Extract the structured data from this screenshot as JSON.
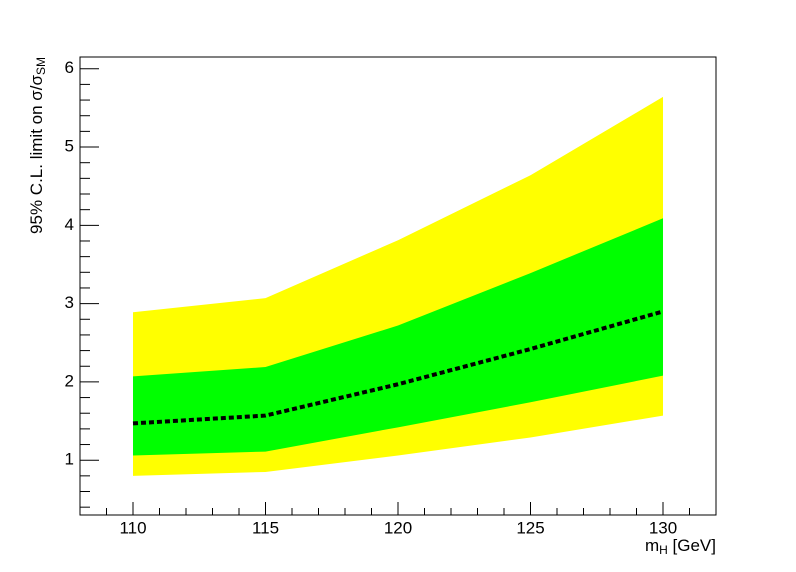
{
  "chart_data": {
    "type": "band",
    "x_label": {
      "text": "m",
      "sub": "H",
      "suffix": " [GeV]"
    },
    "y_label": {
      "text": "95% C.L. limit on σ/σ",
      "sub": "SM"
    },
    "x": [
      110,
      115,
      120,
      125,
      130
    ],
    "bands": [
      {
        "color": "#ffff00",
        "lower": [
          0.8,
          0.85,
          1.06,
          1.29,
          1.57
        ],
        "upper": [
          2.89,
          3.07,
          3.81,
          4.64,
          5.64
        ]
      },
      {
        "color": "#00ff00",
        "lower": [
          1.06,
          1.11,
          1.42,
          1.74,
          2.08
        ],
        "upper": [
          2.07,
          2.19,
          2.72,
          3.39,
          4.09
        ]
      }
    ],
    "series": [
      {
        "color": "#000000",
        "dashed": true,
        "values": [
          1.47,
          1.57,
          1.97,
          2.42,
          2.9
        ]
      }
    ],
    "xlim": [
      108,
      132
    ],
    "ylim": [
      0.3,
      6.15
    ],
    "xticks": [
      110,
      115,
      120,
      125,
      130
    ],
    "yticks": [
      1,
      2,
      3,
      4,
      5,
      6
    ],
    "xminorticks": [
      108,
      109,
      111,
      112,
      113,
      114,
      116,
      117,
      118,
      119,
      121,
      122,
      123,
      124,
      126,
      127,
      128,
      129,
      131,
      132
    ],
    "yminorticks": [
      0.4,
      0.6,
      0.8,
      1.2,
      1.4,
      1.6,
      1.8,
      2.2,
      2.4,
      2.6,
      2.8,
      3.2,
      3.4,
      3.6,
      3.8,
      4.2,
      4.4,
      4.6,
      4.8,
      5.2,
      5.4,
      5.6,
      5.8
    ]
  }
}
